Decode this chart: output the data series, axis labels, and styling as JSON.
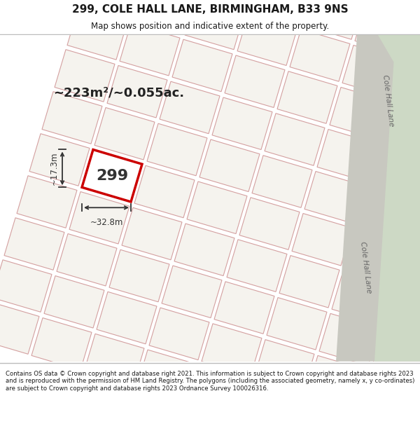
{
  "title_line1": "299, COLE HALL LANE, BIRMINGHAM, B33 9NS",
  "title_line2": "Map shows position and indicative extent of the property.",
  "area_text": "~223m²/~0.055ac.",
  "width_label": "~32.8m",
  "height_label": "~17.3m",
  "number_label": "299",
  "footer_text": "Contains OS data © Crown copyright and database right 2021. This information is subject to Crown copyright and database rights 2023 and is reproduced with the permission of HM Land Registry. The polygons (including the associated geometry, namely x, y co-ordinates) are subject to Crown copyright and database rights 2023 Ordnance Survey 100026316.",
  "map_bg": "#eeece4",
  "plot_fill": "#f5f3ee",
  "plot_edge": "#d4a0a0",
  "highlight_fill": "#ffffff",
  "highlight_edge": "#cc0000",
  "road_green": "#cdd9c5",
  "road_gray": "#c8c8c0",
  "text_color": "#1a1a1a",
  "dim_line_color": "#333333",
  "road_label_color": "#666666",
  "title_bg": "#ffffff",
  "footer_bg": "#ffffff"
}
